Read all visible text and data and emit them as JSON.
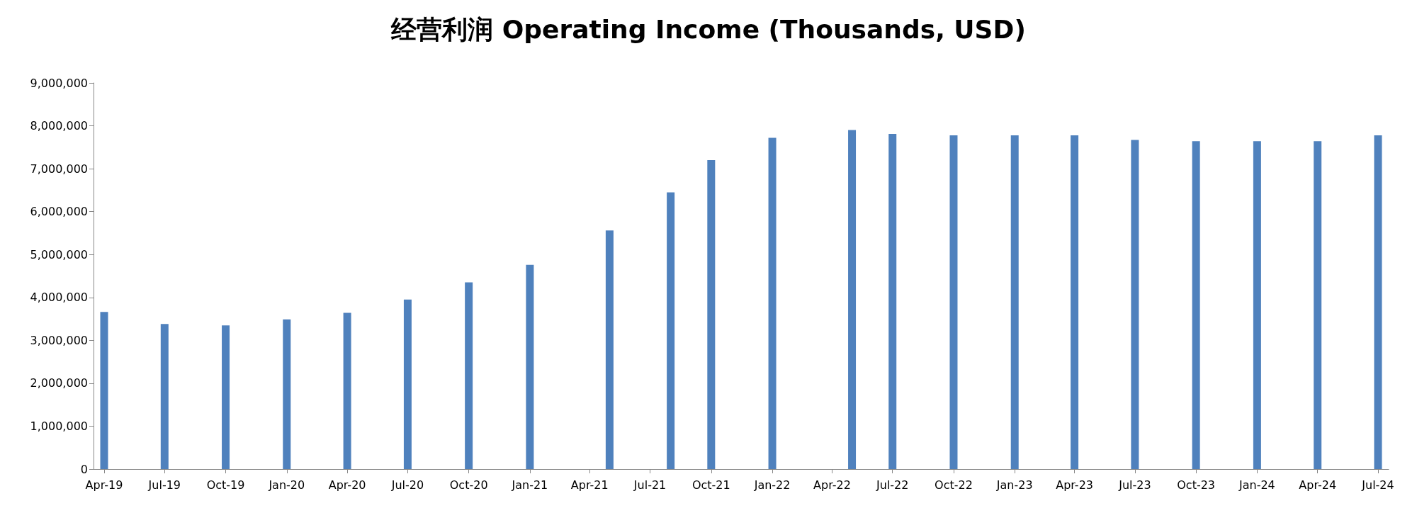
{
  "chart_data": {
    "type": "bar",
    "title": "经营利润 Operating Income (Thousands, USD)",
    "x": [
      "2019-04",
      "2019-07",
      "2019-10",
      "2020-01",
      "2020-04",
      "2020-07",
      "2020-10",
      "2021-01",
      "2021-05",
      "2021-08",
      "2021-10",
      "2022-01",
      "2022-05",
      "2022-07",
      "2022-10",
      "2023-01",
      "2023-04",
      "2023-07",
      "2023-10",
      "2024-01",
      "2024-04",
      "2024-07"
    ],
    "values": [
      3660000,
      3380000,
      3350000,
      3490000,
      3640000,
      3950000,
      4350000,
      4760000,
      5560000,
      6450000,
      7200000,
      7720000,
      7900000,
      7810000,
      7780000,
      7780000,
      7780000,
      7670000,
      7640000,
      7640000,
      7640000,
      7780000
    ],
    "color": "#4f81bd",
    "xlim": [
      "2019-03-16",
      "2024-07-17"
    ],
    "xticks": [
      {
        "value": "2019-04",
        "label": "Apr-19"
      },
      {
        "value": "2019-07",
        "label": "Jul-19"
      },
      {
        "value": "2019-10",
        "label": "Oct-19"
      },
      {
        "value": "2020-01",
        "label": "Jan-20"
      },
      {
        "value": "2020-04",
        "label": "Apr-20"
      },
      {
        "value": "2020-07",
        "label": "Jul-20"
      },
      {
        "value": "2020-10",
        "label": "Oct-20"
      },
      {
        "value": "2021-01",
        "label": "Jan-21"
      },
      {
        "value": "2021-04",
        "label": "Apr-21"
      },
      {
        "value": "2021-07",
        "label": "Jul-21"
      },
      {
        "value": "2021-10",
        "label": "Oct-21"
      },
      {
        "value": "2022-01",
        "label": "Jan-22"
      },
      {
        "value": "2022-04",
        "label": "Apr-22"
      },
      {
        "value": "2022-07",
        "label": "Jul-22"
      },
      {
        "value": "2022-10",
        "label": "Oct-22"
      },
      {
        "value": "2023-01",
        "label": "Jan-23"
      },
      {
        "value": "2023-04",
        "label": "Apr-23"
      },
      {
        "value": "2023-07",
        "label": "Jul-23"
      },
      {
        "value": "2023-10",
        "label": "Oct-23"
      },
      {
        "value": "2024-01",
        "label": "Jan-24"
      },
      {
        "value": "2024-04",
        "label": "Apr-24"
      },
      {
        "value": "2024-07",
        "label": "Jul-24"
      }
    ],
    "ylim": [
      0,
      9000000
    ],
    "yticks": [
      {
        "value": 0,
        "label": "0"
      },
      {
        "value": 1000000,
        "label": "1,000,000"
      },
      {
        "value": 2000000,
        "label": "2,000,000"
      },
      {
        "value": 3000000,
        "label": "3,000,000"
      },
      {
        "value": 4000000,
        "label": "4,000,000"
      },
      {
        "value": 5000000,
        "label": "5,000,000"
      },
      {
        "value": 6000000,
        "label": "6,000,000"
      },
      {
        "value": 7000000,
        "label": "7,000,000"
      },
      {
        "value": 8000000,
        "label": "8,000,000"
      },
      {
        "value": 9000000,
        "label": "9,000,000"
      }
    ],
    "grid": false
  }
}
